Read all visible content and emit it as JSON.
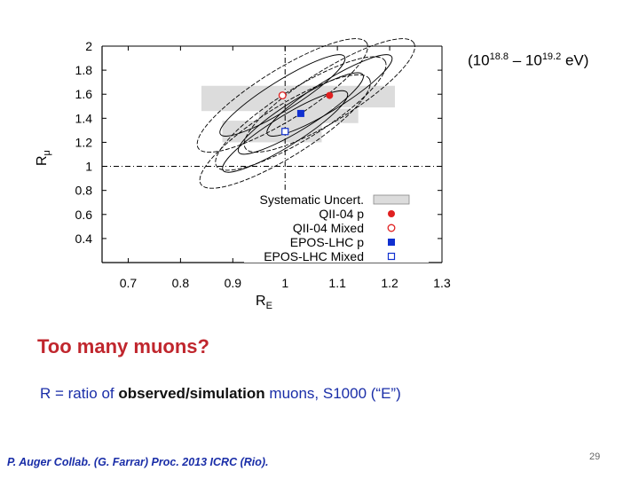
{
  "energy_label": {
    "open": "(10",
    "exp1": "18.8",
    "mid": " – 10",
    "exp2": "19.2",
    "close": " eV)"
  },
  "headline": "Too many muons?",
  "description": {
    "prefix": "R = ratio of ",
    "bold": "observed/simulation",
    "suffix": " muons, S1000 (“E”)"
  },
  "citation": "P. Auger Collab. (G. Farrar) Proc. 2013 ICRC (Rio).",
  "page_number": "29",
  "colors": {
    "red": "#e02020",
    "blue": "#1030d0",
    "headline": "#c0262d",
    "systematic_band": "#dcdcdc",
    "text_blue": "#1a2ea8"
  },
  "chart_data": {
    "type": "scatter",
    "xlabel": "R_E",
    "ylabel": "R_μ",
    "xlim": [
      0.65,
      1.3
    ],
    "ylim": [
      0.2,
      2.0
    ],
    "xticks": [
      "0.7",
      "0.8",
      "0.9",
      "1",
      "1.1",
      "1.2",
      "1.3"
    ],
    "yticks": [
      "0.4",
      "0.6",
      "0.8",
      "1",
      "1.2",
      "1.4",
      "1.6",
      "1.8",
      "2"
    ],
    "x_tick_values": [
      0.7,
      0.8,
      0.9,
      1.0,
      1.1,
      1.2,
      1.3
    ],
    "y_tick_values": [
      0.4,
      0.6,
      0.8,
      1.0,
      1.2,
      1.4,
      1.6,
      1.8,
      2.0
    ],
    "reference_lines": {
      "x": 1.0,
      "y": 1.0
    },
    "legend_placement": "bottom-right",
    "grid": false,
    "series": [
      {
        "name": "Systematic Uncert.",
        "marker": "box",
        "color": "#dcdcdc"
      },
      {
        "name": "QII-04 p",
        "marker": "filled-circle",
        "color": "#e02020",
        "x": 1.085,
        "y": 1.59,
        "syst_box": {
          "x": [
            1.0,
            1.21
          ],
          "y": [
            1.49,
            1.67
          ]
        }
      },
      {
        "name": "QII-04 Mixed",
        "marker": "open-circle",
        "color": "#e02020",
        "x": 0.995,
        "y": 1.59,
        "syst_box": {
          "x": [
            0.84,
            1.09
          ],
          "y": [
            1.46,
            1.67
          ]
        }
      },
      {
        "name": "EPOS-LHC p",
        "marker": "filled-square",
        "color": "#1030d0",
        "x": 1.03,
        "y": 1.44,
        "syst_box": {
          "x": [
            0.95,
            1.14
          ],
          "y": [
            1.36,
            1.48
          ]
        }
      },
      {
        "name": "EPOS-LHC Mixed",
        "marker": "open-square",
        "color": "#1030d0",
        "x": 1.0,
        "y": 1.29,
        "syst_box": {
          "x": [
            0.88,
            1.07
          ],
          "y": [
            1.2,
            1.38
          ]
        }
      }
    ],
    "contours": [
      {
        "center": [
          1.085,
          1.59
        ],
        "angle_deg": -32,
        "rx": [
          0.14,
          0.19
        ],
        "ry": [
          0.028,
          0.048
        ]
      },
      {
        "center": [
          0.995,
          1.59
        ],
        "angle_deg": -32,
        "rx": [
          0.14,
          0.19
        ],
        "ry": [
          0.028,
          0.048
        ]
      },
      {
        "center": [
          1.03,
          1.44
        ],
        "angle_deg": -32,
        "rx": [
          0.14,
          0.19
        ],
        "ry": [
          0.028,
          0.048
        ]
      },
      {
        "center": [
          1.0,
          1.29
        ],
        "angle_deg": -32,
        "rx": [
          0.14,
          0.19
        ],
        "ry": [
          0.028,
          0.048
        ]
      }
    ]
  }
}
